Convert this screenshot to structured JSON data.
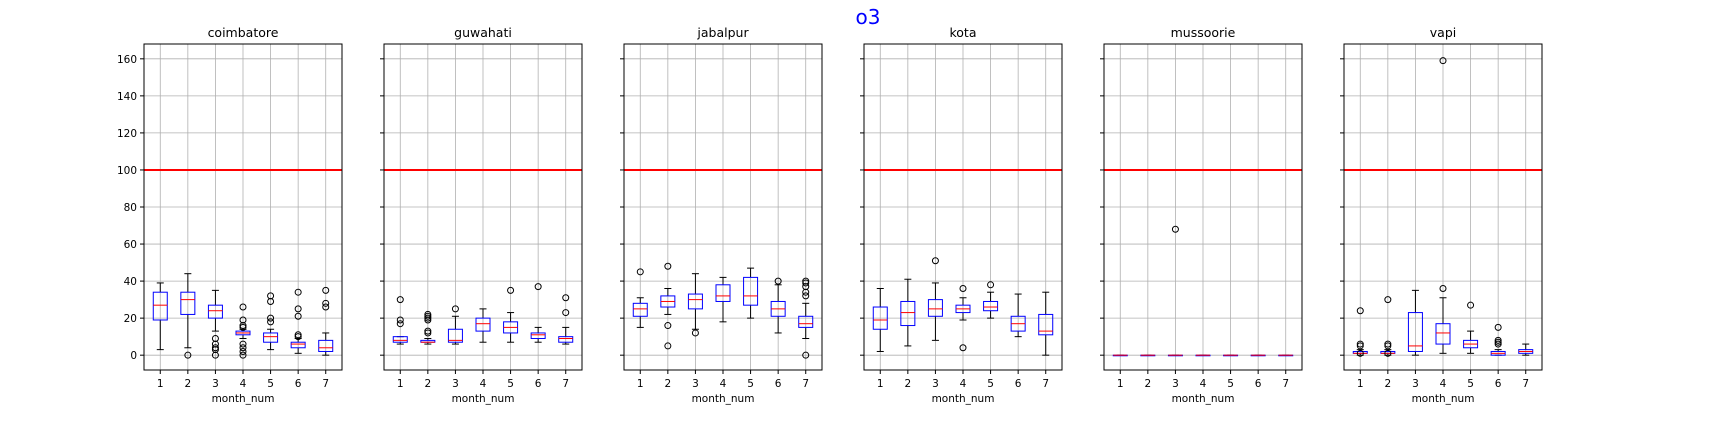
{
  "chart_data": {
    "type": "box",
    "suptitle": "o3",
    "suptitle_color": "#0000ff",
    "xlabel": "month_num",
    "categories": [
      "1",
      "2",
      "3",
      "4",
      "5",
      "6",
      "7"
    ],
    "ylim": [
      -8,
      168
    ],
    "yticks": [
      "0",
      "20",
      "40",
      "60",
      "80",
      "100",
      "120",
      "140",
      "160"
    ],
    "grid": true,
    "reference_line": {
      "y": 100,
      "color": "#ff0000"
    },
    "box_color": "#0000ff",
    "median_color": "#ff0000",
    "panels": [
      {
        "title": "coimbatore",
        "boxes": [
          {
            "month": "1",
            "whislo": 3,
            "q1": 19,
            "med": 27,
            "q3": 34,
            "whishi": 39,
            "fliers": []
          },
          {
            "month": "2",
            "whislo": 4,
            "q1": 22,
            "med": 30,
            "q3": 34,
            "whishi": 44,
            "fliers": [
              0
            ]
          },
          {
            "month": "3",
            "whislo": 13,
            "q1": 20,
            "med": 24,
            "q3": 27,
            "whishi": 35,
            "fliers": [
              9,
              6,
              4,
              3,
              0
            ]
          },
          {
            "month": "4",
            "whislo": 9,
            "q1": 11,
            "med": 12,
            "q3": 13,
            "whishi": 14,
            "fliers": [
              26,
              19,
              16,
              15,
              6,
              4,
              2,
              0
            ]
          },
          {
            "month": "5",
            "whislo": 3,
            "q1": 7,
            "med": 10,
            "q3": 12,
            "whishi": 14,
            "fliers": [
              32,
              29,
              20,
              18
            ]
          },
          {
            "month": "6",
            "whislo": 1,
            "q1": 4,
            "med": 6,
            "q3": 7,
            "whishi": 9,
            "fliers": [
              34,
              25,
              21,
              11,
              10
            ]
          },
          {
            "month": "7",
            "whislo": 0,
            "q1": 2,
            "med": 4,
            "q3": 8,
            "whishi": 12,
            "fliers": [
              35,
              28,
              26
            ]
          }
        ]
      },
      {
        "title": "guwahati",
        "boxes": [
          {
            "month": "1",
            "whislo": 6,
            "q1": 7,
            "med": 8,
            "q3": 10,
            "whishi": 10,
            "fliers": [
              30,
              19,
              17
            ]
          },
          {
            "month": "2",
            "whislo": 6,
            "q1": 7,
            "med": 7,
            "q3": 8,
            "whishi": 9,
            "fliers": [
              22,
              21,
              20,
              19,
              13,
              12
            ]
          },
          {
            "month": "3",
            "whislo": 6,
            "q1": 7,
            "med": 8,
            "q3": 14,
            "whishi": 21,
            "fliers": [
              25
            ]
          },
          {
            "month": "4",
            "whislo": 7,
            "q1": 13,
            "med": 17,
            "q3": 20,
            "whishi": 25,
            "fliers": []
          },
          {
            "month": "5",
            "whislo": 7,
            "q1": 12,
            "med": 15,
            "q3": 18,
            "whishi": 23,
            "fliers": [
              35
            ]
          },
          {
            "month": "6",
            "whislo": 7,
            "q1": 9,
            "med": 11,
            "q3": 12,
            "whishi": 15,
            "fliers": [
              37
            ]
          },
          {
            "month": "7",
            "whislo": 6,
            "q1": 7,
            "med": 9,
            "q3": 10,
            "whishi": 15,
            "fliers": [
              31,
              23
            ]
          }
        ]
      },
      {
        "title": "jabalpur",
        "boxes": [
          {
            "month": "1",
            "whislo": 15,
            "q1": 21,
            "med": 25,
            "q3": 28,
            "whishi": 31,
            "fliers": [
              45
            ]
          },
          {
            "month": "2",
            "whislo": 22,
            "q1": 26,
            "med": 29,
            "q3": 32,
            "whishi": 36,
            "fliers": [
              48,
              16,
              5
            ]
          },
          {
            "month": "3",
            "whislo": 14,
            "q1": 25,
            "med": 30,
            "q3": 33,
            "whishi": 44,
            "fliers": [
              12
            ]
          },
          {
            "month": "4",
            "whislo": 18,
            "q1": 29,
            "med": 32,
            "q3": 38,
            "whishi": 42,
            "fliers": []
          },
          {
            "month": "5",
            "whislo": 20,
            "q1": 27,
            "med": 32,
            "q3": 42,
            "whishi": 47,
            "fliers": []
          },
          {
            "month": "6",
            "whislo": 12,
            "q1": 21,
            "med": 25,
            "q3": 29,
            "whishi": 38,
            "fliers": [
              40
            ]
          },
          {
            "month": "7",
            "whislo": 9,
            "q1": 15,
            "med": 17,
            "q3": 21,
            "whishi": 28,
            "fliers": [
              40,
              39,
              37,
              34,
              32,
              0
            ]
          }
        ]
      },
      {
        "title": "kota",
        "boxes": [
          {
            "month": "1",
            "whislo": 2,
            "q1": 14,
            "med": 19,
            "q3": 26,
            "whishi": 36,
            "fliers": []
          },
          {
            "month": "2",
            "whislo": 5,
            "q1": 16,
            "med": 23,
            "q3": 29,
            "whishi": 41,
            "fliers": []
          },
          {
            "month": "3",
            "whislo": 8,
            "q1": 21,
            "med": 25,
            "q3": 30,
            "whishi": 39,
            "fliers": [
              51
            ]
          },
          {
            "month": "4",
            "whislo": 19,
            "q1": 23,
            "med": 25,
            "q3": 27,
            "whishi": 31,
            "fliers": [
              36,
              4
            ]
          },
          {
            "month": "5",
            "whislo": 20,
            "q1": 24,
            "med": 26,
            "q3": 29,
            "whishi": 34,
            "fliers": [
              38
            ]
          },
          {
            "month": "6",
            "whislo": 10,
            "q1": 13,
            "med": 17,
            "q3": 21,
            "whishi": 33,
            "fliers": []
          },
          {
            "month": "7",
            "whislo": 0,
            "q1": 11,
            "med": 13,
            "q3": 22,
            "whishi": 34,
            "fliers": []
          }
        ]
      },
      {
        "title": "mussoorie",
        "boxes": [
          {
            "month": "1",
            "whislo": 0,
            "q1": 0,
            "med": 0,
            "q3": 0,
            "whishi": 0,
            "fliers": []
          },
          {
            "month": "2",
            "whislo": 0,
            "q1": 0,
            "med": 0,
            "q3": 0,
            "whishi": 0,
            "fliers": []
          },
          {
            "month": "3",
            "whislo": 0,
            "q1": 0,
            "med": 0,
            "q3": 0,
            "whishi": 0,
            "fliers": [
              68
            ]
          },
          {
            "month": "4",
            "whislo": 0,
            "q1": 0,
            "med": 0,
            "q3": 0,
            "whishi": 0,
            "fliers": []
          },
          {
            "month": "5",
            "whislo": 0,
            "q1": 0,
            "med": 0,
            "q3": 0,
            "whishi": 0,
            "fliers": []
          },
          {
            "month": "6",
            "whislo": 0,
            "q1": 0,
            "med": 0,
            "q3": 0,
            "whishi": 0,
            "fliers": []
          },
          {
            "month": "7",
            "whislo": 0,
            "q1": 0,
            "med": 0,
            "q3": 0,
            "whishi": 0,
            "fliers": []
          }
        ]
      },
      {
        "title": "vapi",
        "boxes": [
          {
            "month": "1",
            "whislo": 0,
            "q1": 1,
            "med": 1,
            "q3": 2,
            "whishi": 3,
            "fliers": [
              24,
              6,
              5,
              1
            ]
          },
          {
            "month": "2",
            "whislo": 0,
            "q1": 1,
            "med": 1,
            "q3": 2,
            "whishi": 3,
            "fliers": [
              30,
              6,
              5,
              1
            ]
          },
          {
            "month": "3",
            "whislo": 0,
            "q1": 2,
            "med": 5,
            "q3": 23,
            "whishi": 35,
            "fliers": []
          },
          {
            "month": "4",
            "whislo": 1,
            "q1": 6,
            "med": 12,
            "q3": 17,
            "whishi": 31,
            "fliers": [
              159,
              36
            ]
          },
          {
            "month": "5",
            "whislo": 1,
            "q1": 4,
            "med": 6,
            "q3": 8,
            "whishi": 13,
            "fliers": [
              27
            ]
          },
          {
            "month": "6",
            "whislo": 0,
            "q1": 0,
            "med": 1,
            "q3": 2,
            "whishi": 3,
            "fliers": [
              15,
              8,
              7,
              6
            ]
          },
          {
            "month": "7",
            "whislo": 0,
            "q1": 1,
            "med": 2,
            "q3": 3,
            "whishi": 6,
            "fliers": []
          }
        ]
      }
    ]
  }
}
